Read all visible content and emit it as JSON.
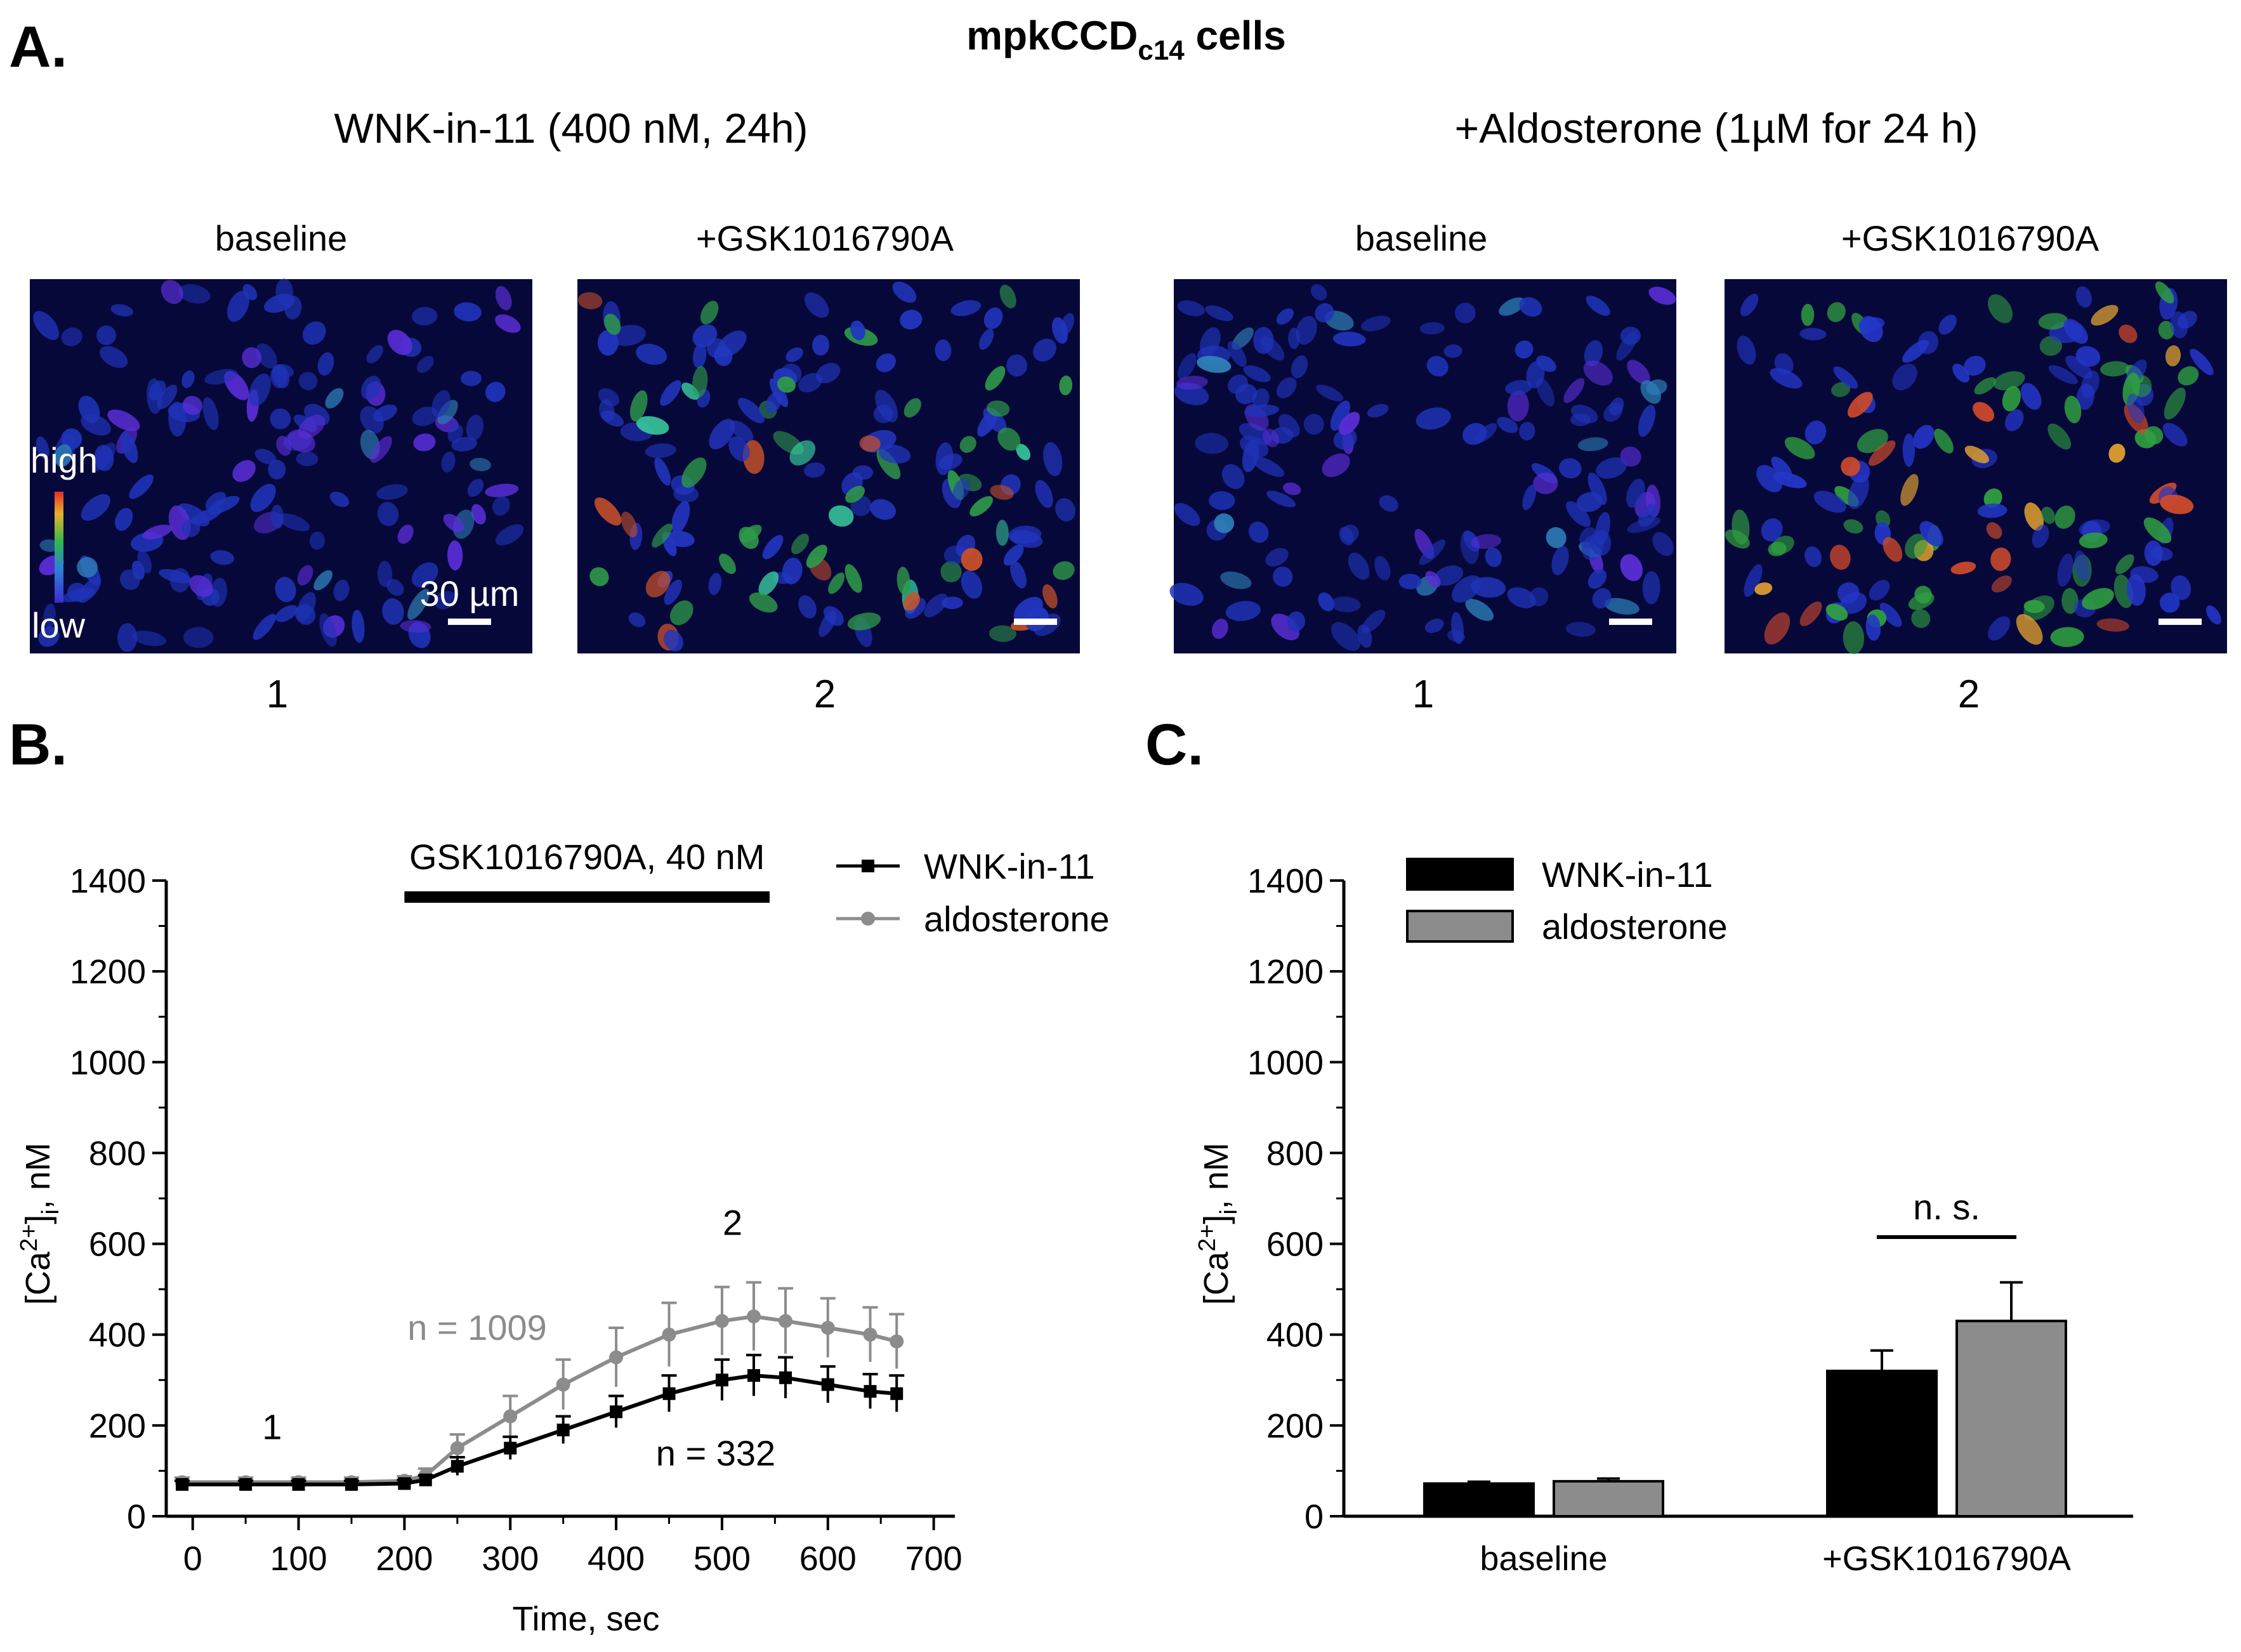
{
  "figure": {
    "panel_a": {
      "letter": "A.",
      "title_main": "mpkCCD",
      "title_sub": "c14",
      "title_tail": " cells",
      "conditions": [
        {
          "title": "WNK-in-11 (400 nM, 24h)",
          "images": [
            {
              "label": "baseline",
              "index": "1",
              "response": "low"
            },
            {
              "label": "+GSK1016790A",
              "index": "2",
              "response": "mid"
            }
          ]
        },
        {
          "title": "+Aldosterone (1µM for 24 h)",
          "images": [
            {
              "label": "baseline",
              "index": "1",
              "response": "low"
            },
            {
              "label": "+GSK1016790A",
              "index": "2",
              "response": "high"
            }
          ]
        }
      ],
      "colorbar": {
        "high": "high",
        "low": "low"
      },
      "scalebar_label": "30 µm"
    }
  },
  "chart_data": [
    {
      "panel": "B.",
      "type": "line",
      "xlabel": "Time, sec",
      "ylabel_prefix": "[Ca",
      "ylabel_sup": "2+",
      "ylabel_mid": "]",
      "ylabel_sub": "i",
      "ylabel_suffix": ", nM",
      "xlim": [
        -25,
        720
      ],
      "ylim": [
        0,
        1400
      ],
      "x_ticks": [
        0,
        100,
        200,
        300,
        400,
        500,
        600,
        700
      ],
      "y_ticks": [
        0,
        200,
        400,
        600,
        800,
        1000,
        1200,
        1400
      ],
      "bar_annotation": {
        "label": "GSK1016790A, 40 nM",
        "x_start": 200,
        "x_end": 545
      },
      "series": [
        {
          "name": "WNK-in-11",
          "color": "#000000",
          "marker": "square",
          "n_label": "n = 332",
          "x": [
            -10,
            50,
            100,
            150,
            200,
            220,
            250,
            300,
            350,
            400,
            450,
            500,
            530,
            560,
            600,
            640,
            665
          ],
          "y": [
            70,
            70,
            70,
            70,
            72,
            80,
            110,
            150,
            190,
            230,
            270,
            300,
            310,
            305,
            290,
            275,
            270
          ],
          "err": [
            8,
            8,
            8,
            8,
            8,
            10,
            20,
            25,
            30,
            35,
            40,
            45,
            45,
            45,
            40,
            38,
            40
          ]
        },
        {
          "name": "aldosterone",
          "color": "#8c8c8c",
          "marker": "circle",
          "n_label": "n = 1009",
          "x": [
            -10,
            50,
            100,
            150,
            200,
            220,
            250,
            300,
            350,
            400,
            450,
            500,
            530,
            560,
            600,
            640,
            665
          ],
          "y": [
            75,
            75,
            75,
            75,
            78,
            90,
            150,
            220,
            290,
            350,
            400,
            430,
            440,
            430,
            415,
            400,
            385
          ],
          "err": [
            10,
            10,
            10,
            10,
            10,
            15,
            30,
            45,
            55,
            65,
            70,
            75,
            75,
            72,
            65,
            60,
            60
          ]
        }
      ],
      "time_markers": [
        {
          "label": "1",
          "x": 75,
          "y": 170
        },
        {
          "label": "2",
          "x": 510,
          "y": 620
        }
      ]
    },
    {
      "panel": "C.",
      "type": "bar",
      "categories": [
        "baseline",
        "+GSK1016790A"
      ],
      "ylim": [
        0,
        1400
      ],
      "y_ticks": [
        0,
        200,
        400,
        600,
        800,
        1000,
        1200,
        1400
      ],
      "ylabel_prefix": "[Ca",
      "ylabel_sup": "2+",
      "ylabel_mid": "]",
      "ylabel_sub": "i",
      "ylabel_suffix": ", nM",
      "series": [
        {
          "name": "WNK-in-11",
          "color": "#000000",
          "values": [
            72,
            320
          ],
          "errors": [
            4,
            45
          ]
        },
        {
          "name": "aldosterone",
          "color": "#8c8c8c",
          "values": [
            77,
            430
          ],
          "errors": [
            6,
            85
          ]
        }
      ],
      "significance": {
        "label": "n. s.",
        "category": "+GSK1016790A"
      }
    }
  ]
}
